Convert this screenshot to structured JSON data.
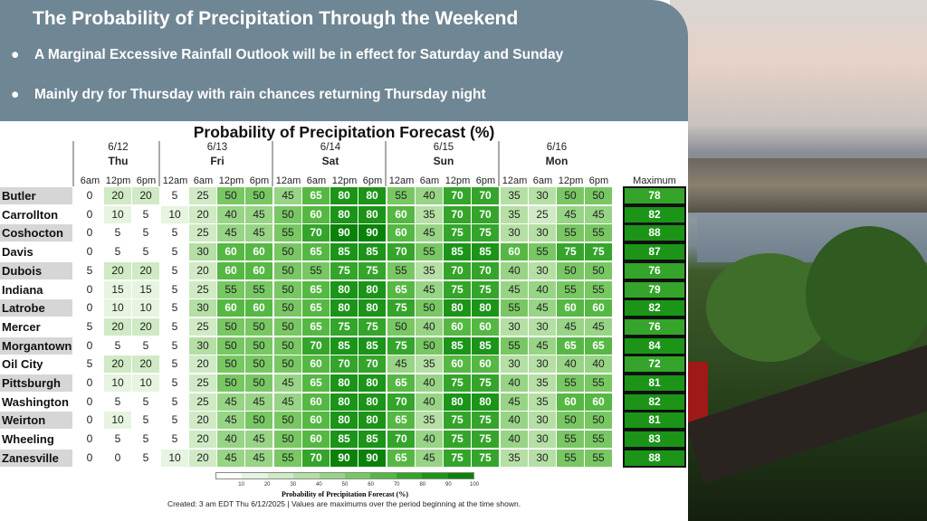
{
  "slide": {
    "title": "The Probability of Precipitation Through the Weekend",
    "bullets": [
      "A Marginal Excessive Rainfall Outlook will be in effect for Saturday and Sunday",
      "Mainly dry for Thursday with rain chances returning Thursday night"
    ],
    "bullet_symbol": "●"
  },
  "chart_data": {
    "type": "table",
    "title": "Probability of Precipitation Forecast (%)",
    "days": [
      {
        "date": "6/12",
        "day": "Thu",
        "times": [
          "6am",
          "12pm",
          "6pm"
        ]
      },
      {
        "date": "6/13",
        "day": "Fri",
        "times": [
          "12am",
          "6am",
          "12pm",
          "6pm"
        ]
      },
      {
        "date": "6/14",
        "day": "Sat",
        "times": [
          "12am",
          "6am",
          "12pm",
          "6pm"
        ]
      },
      {
        "date": "6/15",
        "day": "Sun",
        "times": [
          "12am",
          "6am",
          "12pm",
          "6pm"
        ]
      },
      {
        "date": "6/16",
        "day": "Mon",
        "times": [
          "12am",
          "6am",
          "12pm",
          "6pm"
        ]
      }
    ],
    "max_header": "Maximum",
    "rows": [
      {
        "name": "Butler",
        "values": [
          0,
          20,
          20,
          5,
          25,
          50,
          50,
          45,
          65,
          80,
          80,
          55,
          40,
          70,
          70,
          35,
          30,
          50,
          50
        ],
        "max": 78
      },
      {
        "name": "Carrollton",
        "values": [
          0,
          10,
          5,
          10,
          20,
          40,
          45,
          50,
          60,
          80,
          80,
          60,
          35,
          70,
          70,
          35,
          25,
          45,
          45
        ],
        "max": 82
      },
      {
        "name": "Coshocton",
        "values": [
          0,
          5,
          5,
          5,
          25,
          45,
          45,
          55,
          70,
          90,
          90,
          60,
          45,
          75,
          75,
          30,
          30,
          55,
          55
        ],
        "max": 88
      },
      {
        "name": "Davis",
        "values": [
          0,
          5,
          5,
          5,
          30,
          60,
          60,
          50,
          65,
          85,
          85,
          70,
          55,
          85,
          85,
          60,
          55,
          75,
          75
        ],
        "max": 87
      },
      {
        "name": "Dubois",
        "values": [
          5,
          20,
          20,
          5,
          20,
          60,
          60,
          50,
          55,
          75,
          75,
          55,
          35,
          70,
          70,
          40,
          30,
          50,
          50
        ],
        "max": 76
      },
      {
        "name": "Indiana",
        "values": [
          0,
          15,
          15,
          5,
          25,
          55,
          55,
          50,
          65,
          80,
          80,
          65,
          45,
          75,
          75,
          45,
          40,
          55,
          55
        ],
        "max": 79
      },
      {
        "name": "Latrobe",
        "values": [
          0,
          10,
          10,
          5,
          30,
          60,
          60,
          50,
          65,
          80,
          80,
          75,
          50,
          80,
          80,
          55,
          45,
          60,
          60
        ],
        "max": 82
      },
      {
        "name": "Mercer",
        "values": [
          5,
          20,
          20,
          5,
          25,
          50,
          50,
          50,
          65,
          75,
          75,
          50,
          40,
          60,
          60,
          30,
          30,
          45,
          45
        ],
        "max": 76
      },
      {
        "name": "Morgantown",
        "values": [
          0,
          5,
          5,
          5,
          30,
          50,
          50,
          50,
          70,
          85,
          85,
          75,
          50,
          85,
          85,
          55,
          45,
          65,
          65
        ],
        "max": 84
      },
      {
        "name": "Oil City",
        "values": [
          5,
          20,
          20,
          5,
          20,
          50,
          50,
          50,
          60,
          70,
          70,
          45,
          35,
          60,
          60,
          30,
          30,
          40,
          40
        ],
        "max": 72
      },
      {
        "name": "Pittsburgh",
        "values": [
          0,
          10,
          10,
          5,
          25,
          50,
          50,
          45,
          65,
          80,
          80,
          65,
          40,
          75,
          75,
          40,
          35,
          55,
          55
        ],
        "max": 81
      },
      {
        "name": "Washington",
        "values": [
          0,
          5,
          5,
          5,
          25,
          45,
          45,
          45,
          60,
          80,
          80,
          70,
          40,
          80,
          80,
          45,
          35,
          60,
          60
        ],
        "max": 82
      },
      {
        "name": "Weirton",
        "values": [
          0,
          10,
          5,
          5,
          20,
          45,
          50,
          50,
          60,
          80,
          80,
          65,
          35,
          75,
          75,
          40,
          30,
          50,
          50
        ],
        "max": 81
      },
      {
        "name": "Wheeling",
        "values": [
          0,
          5,
          5,
          5,
          20,
          40,
          45,
          50,
          60,
          85,
          85,
          70,
          40,
          75,
          75,
          40,
          30,
          55,
          55
        ],
        "max": 83
      },
      {
        "name": "Zanesville",
        "values": [
          0,
          0,
          5,
          10,
          20,
          45,
          45,
          55,
          70,
          90,
          90,
          65,
          45,
          75,
          75,
          35,
          30,
          55,
          55
        ],
        "max": 88
      }
    ],
    "legend": {
      "title": "Probability of Precipitation Forecast (%)",
      "ticks": [
        "10",
        "20",
        "30",
        "40",
        "50",
        "60",
        "70",
        "80",
        "90",
        "100"
      ],
      "colors": [
        "#ffffff",
        "#e6f4e0",
        "#cfeac4",
        "#b5dfa5",
        "#98d485",
        "#78c763",
        "#55b843",
        "#34a52a",
        "#1b9418",
        "#0a820a"
      ]
    },
    "footer": "Created: 3 am EDT Thu 6/12/2025  |  Values are maximums over the period beginning at the time shown."
  }
}
